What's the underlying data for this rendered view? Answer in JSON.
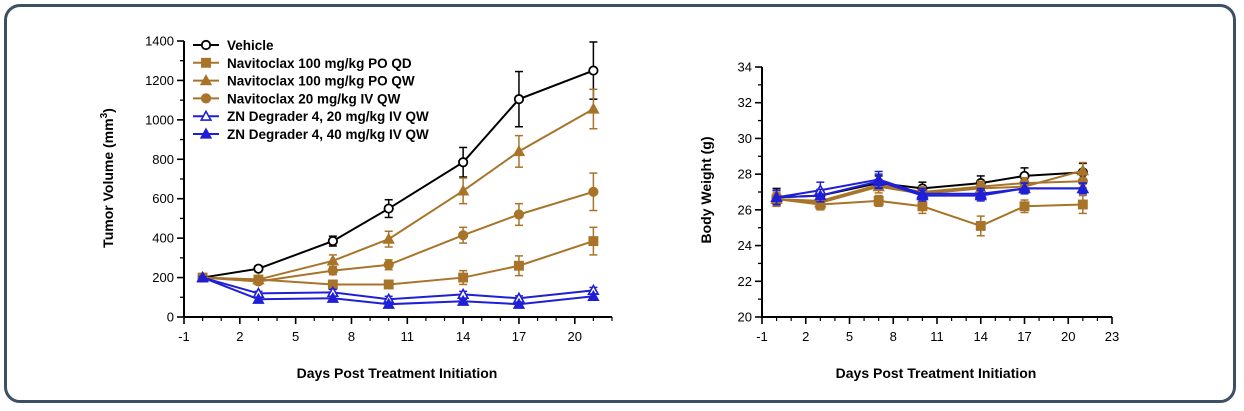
{
  "colors": {
    "vehicle": "#000000",
    "navitoclax": "#a8742a",
    "degrader": "#1f1fd6",
    "frame": "#3d4f63"
  },
  "chart_data": [
    {
      "type": "line",
      "name": "tumor-volume",
      "xlabel": "Days Post Treatment Initiation",
      "ylabel": "Tumor Volume (mm",
      "ylabel_sup": "3",
      "ylabel_end": ")",
      "xlim": [
        -1,
        22
      ],
      "ylim": [
        0,
        1400
      ],
      "xticks": [
        -1,
        2,
        5,
        8,
        11,
        14,
        17,
        20
      ],
      "yticks": [
        0,
        200,
        400,
        600,
        800,
        1000,
        1200,
        1400
      ],
      "legend_position": "top-left",
      "series": [
        {
          "name": "Vehicle",
          "color": "vehicle",
          "marker": "circle-open",
          "x": [
            0,
            3,
            7,
            10,
            14,
            17,
            21
          ],
          "y": [
            200,
            245,
            385,
            550,
            785,
            1105,
            1250
          ],
          "err": [
            10,
            15,
            25,
            45,
            75,
            140,
            145
          ]
        },
        {
          "name": "Navitoclax 100 mg/kg  PO QD",
          "color": "navitoclax",
          "marker": "square",
          "x": [
            0,
            3,
            7,
            10,
            14,
            17,
            21
          ],
          "y": [
            200,
            190,
            165,
            165,
            200,
            260,
            385
          ],
          "err": [
            10,
            15,
            15,
            20,
            35,
            50,
            70
          ]
        },
        {
          "name": "Navitoclax 100 mg/kg PO QW",
          "color": "navitoclax",
          "marker": "triangle",
          "x": [
            0,
            3,
            7,
            10,
            14,
            17,
            21
          ],
          "y": [
            200,
            190,
            285,
            395,
            640,
            840,
            1055
          ],
          "err": [
            10,
            15,
            30,
            40,
            65,
            80,
            100
          ]
        },
        {
          "name": "Navitoclax 20 mg/kg IV QW",
          "color": "navitoclax",
          "marker": "circle",
          "x": [
            0,
            3,
            7,
            10,
            14,
            17,
            21
          ],
          "y": [
            200,
            180,
            235,
            265,
            415,
            520,
            635
          ],
          "err": [
            10,
            15,
            20,
            25,
            40,
            55,
            95
          ]
        },
        {
          "name": "ZN Degrader 4, 20 mg/kg IV QW",
          "color": "degrader",
          "marker": "triangle-open",
          "x": [
            0,
            3,
            7,
            10,
            14,
            17,
            21
          ],
          "y": [
            200,
            120,
            125,
            90,
            115,
            95,
            135
          ],
          "err": [
            5,
            10,
            15,
            15,
            15,
            12,
            15
          ]
        },
        {
          "name": "ZN Degrader 4, 40 mg/kg IV QW",
          "color": "degrader",
          "marker": "triangle",
          "x": [
            0,
            3,
            7,
            10,
            14,
            17,
            21
          ],
          "y": [
            200,
            90,
            95,
            65,
            80,
            65,
            105
          ],
          "err": [
            5,
            10,
            10,
            10,
            10,
            10,
            12
          ]
        }
      ]
    },
    {
      "type": "line",
      "name": "body-weight",
      "xlabel": "Days Post Treatment Initiation",
      "ylabel": "Body Weight (g)",
      "xlim": [
        -1,
        23
      ],
      "ylim": [
        20,
        34
      ],
      "xticks": [
        -1,
        2,
        5,
        8,
        11,
        14,
        17,
        20,
        23
      ],
      "yticks": [
        20,
        22,
        24,
        26,
        28,
        30,
        32,
        34
      ],
      "series": [
        {
          "name": "Vehicle",
          "color": "vehicle",
          "marker": "circle-open",
          "x": [
            0,
            3,
            7,
            10,
            14,
            17,
            21
          ],
          "y": [
            26.7,
            26.8,
            27.5,
            27.2,
            27.5,
            27.9,
            28.1
          ],
          "err": [
            0.5,
            0.3,
            0.4,
            0.35,
            0.4,
            0.45,
            0.5
          ]
        },
        {
          "name": "Navitoclax 100 mg/kg  PO QD",
          "color": "navitoclax",
          "marker": "square",
          "x": [
            0,
            3,
            7,
            10,
            14,
            17,
            21
          ],
          "y": [
            26.6,
            26.3,
            26.5,
            26.2,
            25.1,
            26.2,
            26.3
          ],
          "err": [
            0.4,
            0.3,
            0.3,
            0.4,
            0.55,
            0.35,
            0.5
          ]
        },
        {
          "name": "Navitoclax 100 mg/kg PO QW",
          "color": "navitoclax",
          "marker": "triangle",
          "x": [
            0,
            3,
            7,
            10,
            14,
            17,
            21
          ],
          "y": [
            26.6,
            26.4,
            27.3,
            26.9,
            27.2,
            27.3,
            28.2
          ],
          "err": [
            0.3,
            0.3,
            0.35,
            0.3,
            0.3,
            0.3,
            0.45
          ]
        },
        {
          "name": "Navitoclax 20 mg/kg IV QW",
          "color": "navitoclax",
          "marker": "circle",
          "x": [
            0,
            3,
            7,
            10,
            14,
            17,
            21
          ],
          "y": [
            26.6,
            26.5,
            27.4,
            27.0,
            27.3,
            27.5,
            27.6
          ],
          "err": [
            0.3,
            0.3,
            0.3,
            0.3,
            0.3,
            0.3,
            0.35
          ]
        },
        {
          "name": "ZN Degrader 4, 20 mg/kg IV QW",
          "color": "degrader",
          "marker": "triangle-open",
          "x": [
            0,
            3,
            7,
            10,
            14,
            17,
            21
          ],
          "y": [
            26.7,
            27.1,
            27.7,
            26.9,
            26.9,
            27.2,
            27.2
          ],
          "err": [
            0.4,
            0.45,
            0.45,
            0.3,
            0.3,
            0.3,
            0.3
          ]
        },
        {
          "name": "ZN Degrader 4, 40 mg/kg IV QW",
          "color": "degrader",
          "marker": "triangle",
          "x": [
            0,
            3,
            7,
            10,
            14,
            17,
            21
          ],
          "y": [
            26.7,
            26.8,
            27.6,
            26.8,
            26.8,
            27.2,
            27.2
          ],
          "err": [
            0.4,
            0.35,
            0.4,
            0.3,
            0.3,
            0.3,
            0.3
          ]
        }
      ]
    }
  ]
}
